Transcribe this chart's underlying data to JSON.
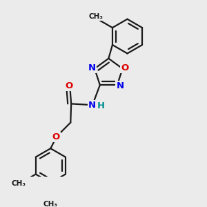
{
  "bg_color": "#ebebeb",
  "bond_color": "#1a1a1a",
  "N_color": "#0000ee",
  "O_color": "#dd0000",
  "H_color": "#009090",
  "line_width": 1.6,
  "figsize": [
    3.0,
    3.0
  ],
  "dpi": 100,
  "xlim": [
    0.2,
    2.8
  ],
  "ylim": [
    0.1,
    2.9
  ]
}
